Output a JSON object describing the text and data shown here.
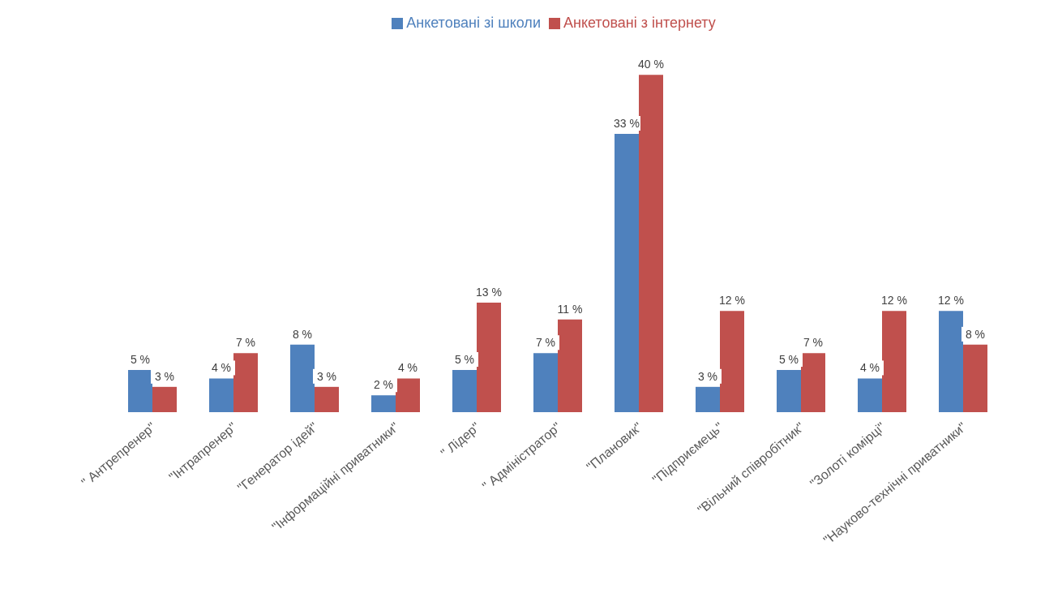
{
  "chart_data": {
    "type": "bar",
    "categories": [
      "\" Антрепренер\"",
      "\"Інтрапренер\"",
      "\"Генератор ідей\"",
      "\"Інформаційні приватники\"",
      "\" Лідер\"",
      "\" Адміністратор\"",
      "\"Плановик\"",
      "\"Підприємець\"",
      "\"Вільний співробітник\"",
      "\"Золоті комірці\"",
      "\"Науково-технічні приватники\""
    ],
    "series": [
      {
        "name": "Анкетовані зі школи",
        "color": "#4f81bd",
        "values": [
          5,
          4,
          8,
          2,
          5,
          7,
          33,
          3,
          5,
          4,
          12
        ],
        "value_labels": [
          "5 %",
          "4 %",
          "8 %",
          "2 %",
          "5 %",
          "7 %",
          "33 %",
          "3 %",
          "5 %",
          "4 %",
          "12 %"
        ]
      },
      {
        "name": "Анкетовані з інтернету",
        "color": "#c0504d",
        "values": [
          3,
          7,
          3,
          4,
          13,
          11,
          40,
          12,
          7,
          12,
          8
        ],
        "value_labels": [
          "3 %",
          "7 %",
          "3 %",
          "4 %",
          "13 %",
          "11 %",
          "40 %",
          "12 %",
          "7 %",
          "12 %",
          "8 %"
        ]
      }
    ],
    "legend": "top",
    "grid": false
  }
}
